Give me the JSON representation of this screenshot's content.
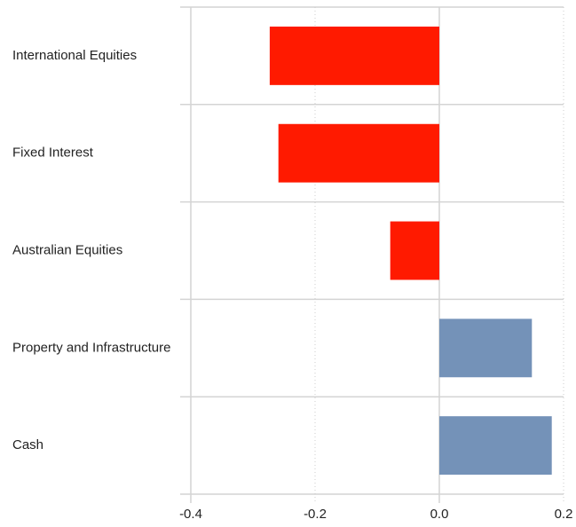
{
  "chart_data": {
    "type": "hbar",
    "categories": [
      "International Equities",
      "Fixed Interest",
      "Australian Equities",
      "Property and Infrastructure",
      "Cash"
    ],
    "values": [
      -0.273,
      -0.259,
      -0.079,
      0.149,
      0.181
    ],
    "colors": [
      "#ff1a00",
      "#ff1a00",
      "#ff1a00",
      "#7492b8",
      "#7492b8"
    ],
    "xlim": [
      -0.4,
      0.2
    ],
    "xticks": [
      -0.4,
      -0.2,
      {
        "value": 0,
        "label": "0.0"
      },
      0.2
    ],
    "grid": true
  }
}
